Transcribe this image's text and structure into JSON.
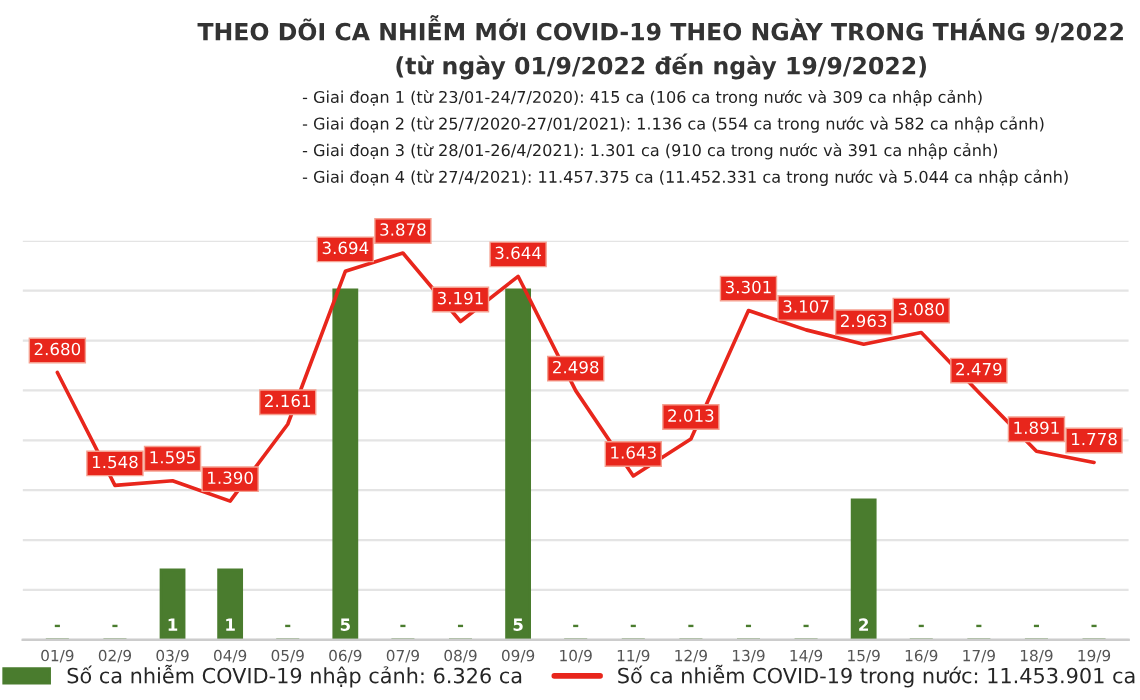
{
  "chart_data": {
    "type": "bar",
    "title": "THEO DÕI CA NHIỄM MỚI COVID-19 THEO NGÀY TRONG THÁNG 9/2022",
    "subtitle": "(từ ngày 01/9/2022 đến ngày 19/9/2022)",
    "annotations": [
      "- Giai đoạn 1 (từ 23/01-24/7/2020): 415 ca (106 ca trong nước và 309 ca nhập cảnh)",
      "- Giai đoạn 2 (từ 25/7/2020-27/01/2021): 1.136 ca (554 ca trong nước và 582 ca nhập cảnh)",
      "- Giai đoạn 3 (từ 28/01-26/4/2021): 1.301 ca (910 ca trong nước và 391 ca nhập cảnh)",
      "- Giai đoạn 4 (từ 27/4/2021): 11.457.375 ca (11.452.331 ca trong nước và 5.044 ca nhập cảnh)"
    ],
    "categories": [
      "01/9",
      "02/9",
      "03/9",
      "04/9",
      "05/9",
      "06/9",
      "07/9",
      "08/9",
      "09/9",
      "10/9",
      "11/9",
      "12/9",
      "13/9",
      "14/9",
      "15/9",
      "16/9",
      "17/9",
      "18/9",
      "19/9"
    ],
    "series": [
      {
        "name": "Số ca nhiễm COVID-19 nhập cảnh: 6.326 ca",
        "axis": "y2",
        "color": "#4a7c2e",
        "values": [
          0,
          0,
          1,
          1,
          0,
          5,
          0,
          0,
          5,
          0,
          0,
          0,
          0,
          0,
          2,
          0,
          0,
          0,
          0
        ],
        "value_labels": [
          "-",
          "-",
          "1",
          "1",
          "-",
          "5",
          "-",
          "-",
          "5",
          "-",
          "-",
          "-",
          "-",
          "-",
          "2",
          "-",
          "-",
          "-",
          "-"
        ]
      },
      {
        "name": "Số ca nhiễm COVID-19 trong nước: 11.453.901 ca",
        "type": "line",
        "color": "#e8261c",
        "values": [
          2680,
          1548,
          1595,
          1390,
          2161,
          3694,
          3878,
          3191,
          3644,
          2498,
          1643,
          2013,
          3301,
          3107,
          2963,
          3080,
          2479,
          1891,
          1778
        ],
        "value_labels": [
          "2.680",
          "1.548",
          "1.595",
          "1.390",
          "2.161",
          "3.694",
          "3.878",
          "3.191",
          "3.644",
          "2.498",
          "1.643",
          "2.013",
          "3.301",
          "3.107",
          "2.963",
          "3.080",
          "2.479",
          "1.891",
          "1.778"
        ]
      }
    ],
    "ylim": [
      0,
      4000
    ],
    "yticks": [
      {
        "value": 0,
        "label": null
      },
      {
        "value": 500,
        "label": null
      },
      {
        "value": 1000,
        "label": null
      },
      {
        "value": 1500,
        "label": null
      },
      {
        "value": 2000,
        "label": null
      },
      {
        "value": 2500,
        "label": null
      },
      {
        "value": 3000,
        "label": null
      },
      {
        "value": 3500,
        "label": null
      },
      {
        "value": 4000,
        "label": null
      }
    ],
    "y2lim": [
      0,
      5.7
    ],
    "tick_labels": "x",
    "grid": "y",
    "legend": "bottom",
    "marker": "none",
    "line_style": "solid"
  }
}
